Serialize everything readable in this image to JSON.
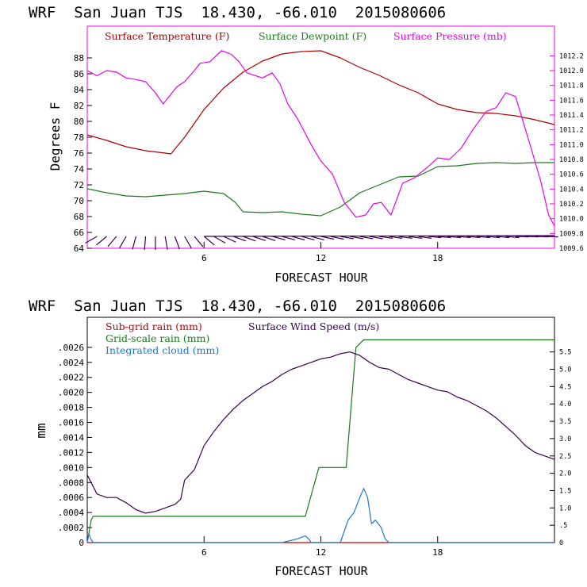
{
  "chart_data": [
    {
      "type": "line",
      "title": "WRF  San Juan TJS  18.430, -66.010  2015080606",
      "xlabel": "FORECAST HOUR",
      "ylabel": "Degrees F",
      "xlim": [
        0,
        24
      ],
      "ylim": [
        64,
        92
      ],
      "y2lim": [
        1009.6,
        1012.6
      ],
      "x_ticks": [
        "6",
        "12",
        "18"
      ],
      "y_ticks": [
        "64",
        "66",
        "68",
        "70",
        "72",
        "74",
        "76",
        "78",
        "80",
        "82",
        "84",
        "86",
        "88"
      ],
      "y2_ticks": [
        "1009.6",
        "1009.8",
        "1010.0",
        "1010.2",
        "1010.4",
        "1010.6",
        "1010.8",
        "1011.0",
        "1011.2",
        "1011.4",
        "1011.6",
        "1011.8",
        "1012.0",
        "1012.2"
      ],
      "series": [
        {
          "name": "Surface Temperature (F)",
          "color": "#b00000",
          "axis": "left",
          "x": [
            0,
            1,
            2,
            3,
            4,
            4.3,
            5,
            6,
            7,
            8,
            9,
            10,
            11,
            12,
            13,
            14,
            15,
            16,
            17,
            18,
            19,
            20,
            21,
            22,
            23,
            24
          ],
          "y": [
            78.3,
            77.6,
            76.8,
            76.3,
            76.0,
            75.9,
            78.0,
            81.5,
            84.2,
            86.2,
            87.6,
            88.5,
            88.8,
            88.9,
            88.0,
            86.8,
            85.8,
            84.6,
            83.6,
            82.2,
            81.5,
            81.1,
            81.0,
            80.7,
            80.2,
            79.6
          ]
        },
        {
          "name": "Surface Dewpoint (F)",
          "color": "#1a7a1a",
          "axis": "left",
          "x": [
            0,
            1,
            2,
            3,
            4,
            5,
            6,
            7,
            7.6,
            8,
            9,
            10,
            11,
            12,
            13,
            14,
            15,
            16,
            17,
            18,
            19,
            20,
            21,
            22,
            23,
            24
          ],
          "y": [
            71.5,
            71.0,
            70.6,
            70.5,
            70.7,
            70.9,
            71.2,
            70.9,
            69.8,
            68.6,
            68.5,
            68.6,
            68.3,
            68.1,
            69.2,
            71.0,
            72.0,
            73.0,
            73.1,
            74.3,
            74.4,
            74.7,
            74.8,
            74.7,
            74.8,
            74.8
          ]
        },
        {
          "name": "Surface Pressure (mb)",
          "color": "#ee00ee",
          "axis": "right",
          "x": [
            0,
            0.5,
            1,
            1.5,
            2,
            2.5,
            3,
            3.5,
            3.9,
            4.2,
            4.6,
            5,
            5.5,
            5.8,
            6.3,
            6.9,
            7.4,
            7.8,
            8.2,
            9,
            9.5,
            9.9,
            10.3,
            10.8,
            11.5,
            12,
            12.6,
            13.2,
            13.8,
            14.3,
            14.7,
            15.1,
            15.6,
            16.2,
            16.8,
            17.5,
            18,
            18.6,
            19.2,
            19.8,
            20.5,
            21,
            21.5,
            22,
            22.4,
            22.8,
            23.3,
            23.7,
            24
          ],
          "y": [
            1012.0,
            1011.93,
            1012.0,
            1011.98,
            1011.9,
            1011.88,
            1011.85,
            1011.7,
            1011.55,
            1011.65,
            1011.78,
            1011.85,
            1012.0,
            1012.1,
            1012.12,
            1012.27,
            1012.22,
            1012.12,
            1011.97,
            1011.9,
            1011.97,
            1011.82,
            1011.55,
            1011.35,
            1011.0,
            1010.78,
            1010.6,
            1010.22,
            1010.02,
            1010.05,
            1010.2,
            1010.22,
            1010.05,
            1010.48,
            1010.55,
            1010.7,
            1010.82,
            1010.8,
            1010.95,
            1011.2,
            1011.45,
            1011.5,
            1011.7,
            1011.65,
            1011.3,
            1010.95,
            1010.5,
            1010.05,
            1009.9
          ]
        }
      ]
    },
    {
      "type": "line",
      "title": "WRF  San Juan TJS  18.430, -66.010  2015080606",
      "xlabel": "FORECAST HOUR",
      "ylabel": "mm",
      "xlim": [
        0,
        24
      ],
      "ylim": [
        0,
        0.003
      ],
      "y2lim": [
        0,
        6.5
      ],
      "x_ticks": [
        "6",
        "12",
        "18"
      ],
      "y_ticks": [
        "0",
        ".0002",
        ".0004",
        ".0006",
        ".0008",
        ".0010",
        ".0012",
        ".0014",
        ".0016",
        ".0018",
        ".0020",
        ".0022",
        ".0024",
        ".0026"
      ],
      "y2_ticks": [
        "0",
        ".5",
        "1.0",
        "1.5",
        "2.0",
        "2.5",
        "3.0",
        "3.5",
        "4.0",
        "4.5",
        "5.0",
        "5.5"
      ],
      "series": [
        {
          "name": "Sub-grid rain (mm)",
          "color": "#c00000",
          "axis": "left",
          "x": [
            0,
            24
          ],
          "y": [
            0,
            0
          ]
        },
        {
          "name": "Grid-scale rain (mm)",
          "color": "#1a7a1a",
          "axis": "left",
          "x": [
            0,
            0.2,
            0.3,
            11.2,
            11.9,
            13.3,
            13.8,
            14.2,
            24
          ],
          "y": [
            0,
            0.0003,
            0.00035,
            0.00035,
            0.001,
            0.001,
            0.0026,
            0.0027,
            0.0027
          ]
        },
        {
          "name": "Integrated cloud (mm)",
          "color": "#1e78c8",
          "axis": "left",
          "x": [
            0,
            0.08,
            0.18,
            0.3,
            10,
            10.8,
            11.2,
            11.4,
            11.5,
            11.7,
            12,
            12.5,
            13,
            13.4,
            13.7,
            14,
            14.2,
            14.4,
            14.6,
            14.8,
            15.1,
            15.3,
            15.5,
            24
          ],
          "y": [
            0,
            0.00012,
            5e-05,
            0,
            0,
            5e-05,
            9e-05,
            4e-05,
            0,
            0,
            0,
            0,
            0,
            0.0003,
            0.0004,
            0.0006,
            0.00072,
            0.0006,
            0.00025,
            0.0003,
            0.0002,
            5e-05,
            0,
            0
          ]
        },
        {
          "name": "Surface Wind Speed (m/s)",
          "color": "#3a0050",
          "axis": "right",
          "x": [
            0,
            0.5,
            1,
            1.5,
            2,
            2.5,
            3,
            3.5,
            4,
            4.5,
            4.8,
            5,
            5.5,
            6,
            6.5,
            7,
            7.5,
            8,
            8.5,
            9,
            9.5,
            10,
            10.5,
            11,
            11.5,
            12,
            12.5,
            13,
            13.5,
            14,
            14.5,
            15,
            15.5,
            16,
            16.5,
            17,
            17.5,
            18,
            18.5,
            19,
            19.5,
            20,
            20.5,
            21,
            21.5,
            22,
            22.5,
            23,
            23.5,
            24
          ],
          "y": [
            1.95,
            1.4,
            1.3,
            1.3,
            1.15,
            0.95,
            0.85,
            0.9,
            1.0,
            1.1,
            1.25,
            1.8,
            2.1,
            2.8,
            3.2,
            3.55,
            3.85,
            4.1,
            4.3,
            4.5,
            4.65,
            4.85,
            5.0,
            5.1,
            5.2,
            5.3,
            5.35,
            5.45,
            5.5,
            5.4,
            5.2,
            5.05,
            5.0,
            4.85,
            4.7,
            4.6,
            4.5,
            4.4,
            4.35,
            4.2,
            4.1,
            3.95,
            3.8,
            3.6,
            3.35,
            3.1,
            2.8,
            2.6,
            2.5,
            2.4
          ]
        }
      ]
    }
  ],
  "wind_barbs": {
    "color": "#3a0050",
    "y_level": 65.5,
    "x": [
      0.5,
      1,
      1.5,
      2,
      2.5,
      3,
      3.5,
      4,
      4.5,
      5,
      5.5,
      6,
      6.5,
      7,
      7.5,
      8,
      8.5,
      9,
      9.5,
      10,
      10.5,
      11,
      11.5,
      12,
      12.5,
      13,
      13.5,
      14,
      14.5,
      15,
      15.5,
      16,
      16.5,
      17,
      17.5,
      18,
      18.5,
      19,
      19.5,
      20,
      20.5,
      21,
      21.5,
      22,
      22.5,
      23,
      23.5
    ],
    "dir": [
      300,
      310,
      320,
      330,
      345,
      355,
      0,
      10,
      20,
      30,
      40,
      50,
      60,
      65,
      70,
      70,
      72,
      72,
      75,
      75,
      75,
      75,
      75,
      78,
      78,
      80,
      80,
      80,
      80,
      82,
      82,
      82,
      82,
      82,
      85,
      85,
      85,
      85,
      85,
      85,
      85,
      85,
      85,
      88,
      88,
      88,
      88
    ]
  }
}
